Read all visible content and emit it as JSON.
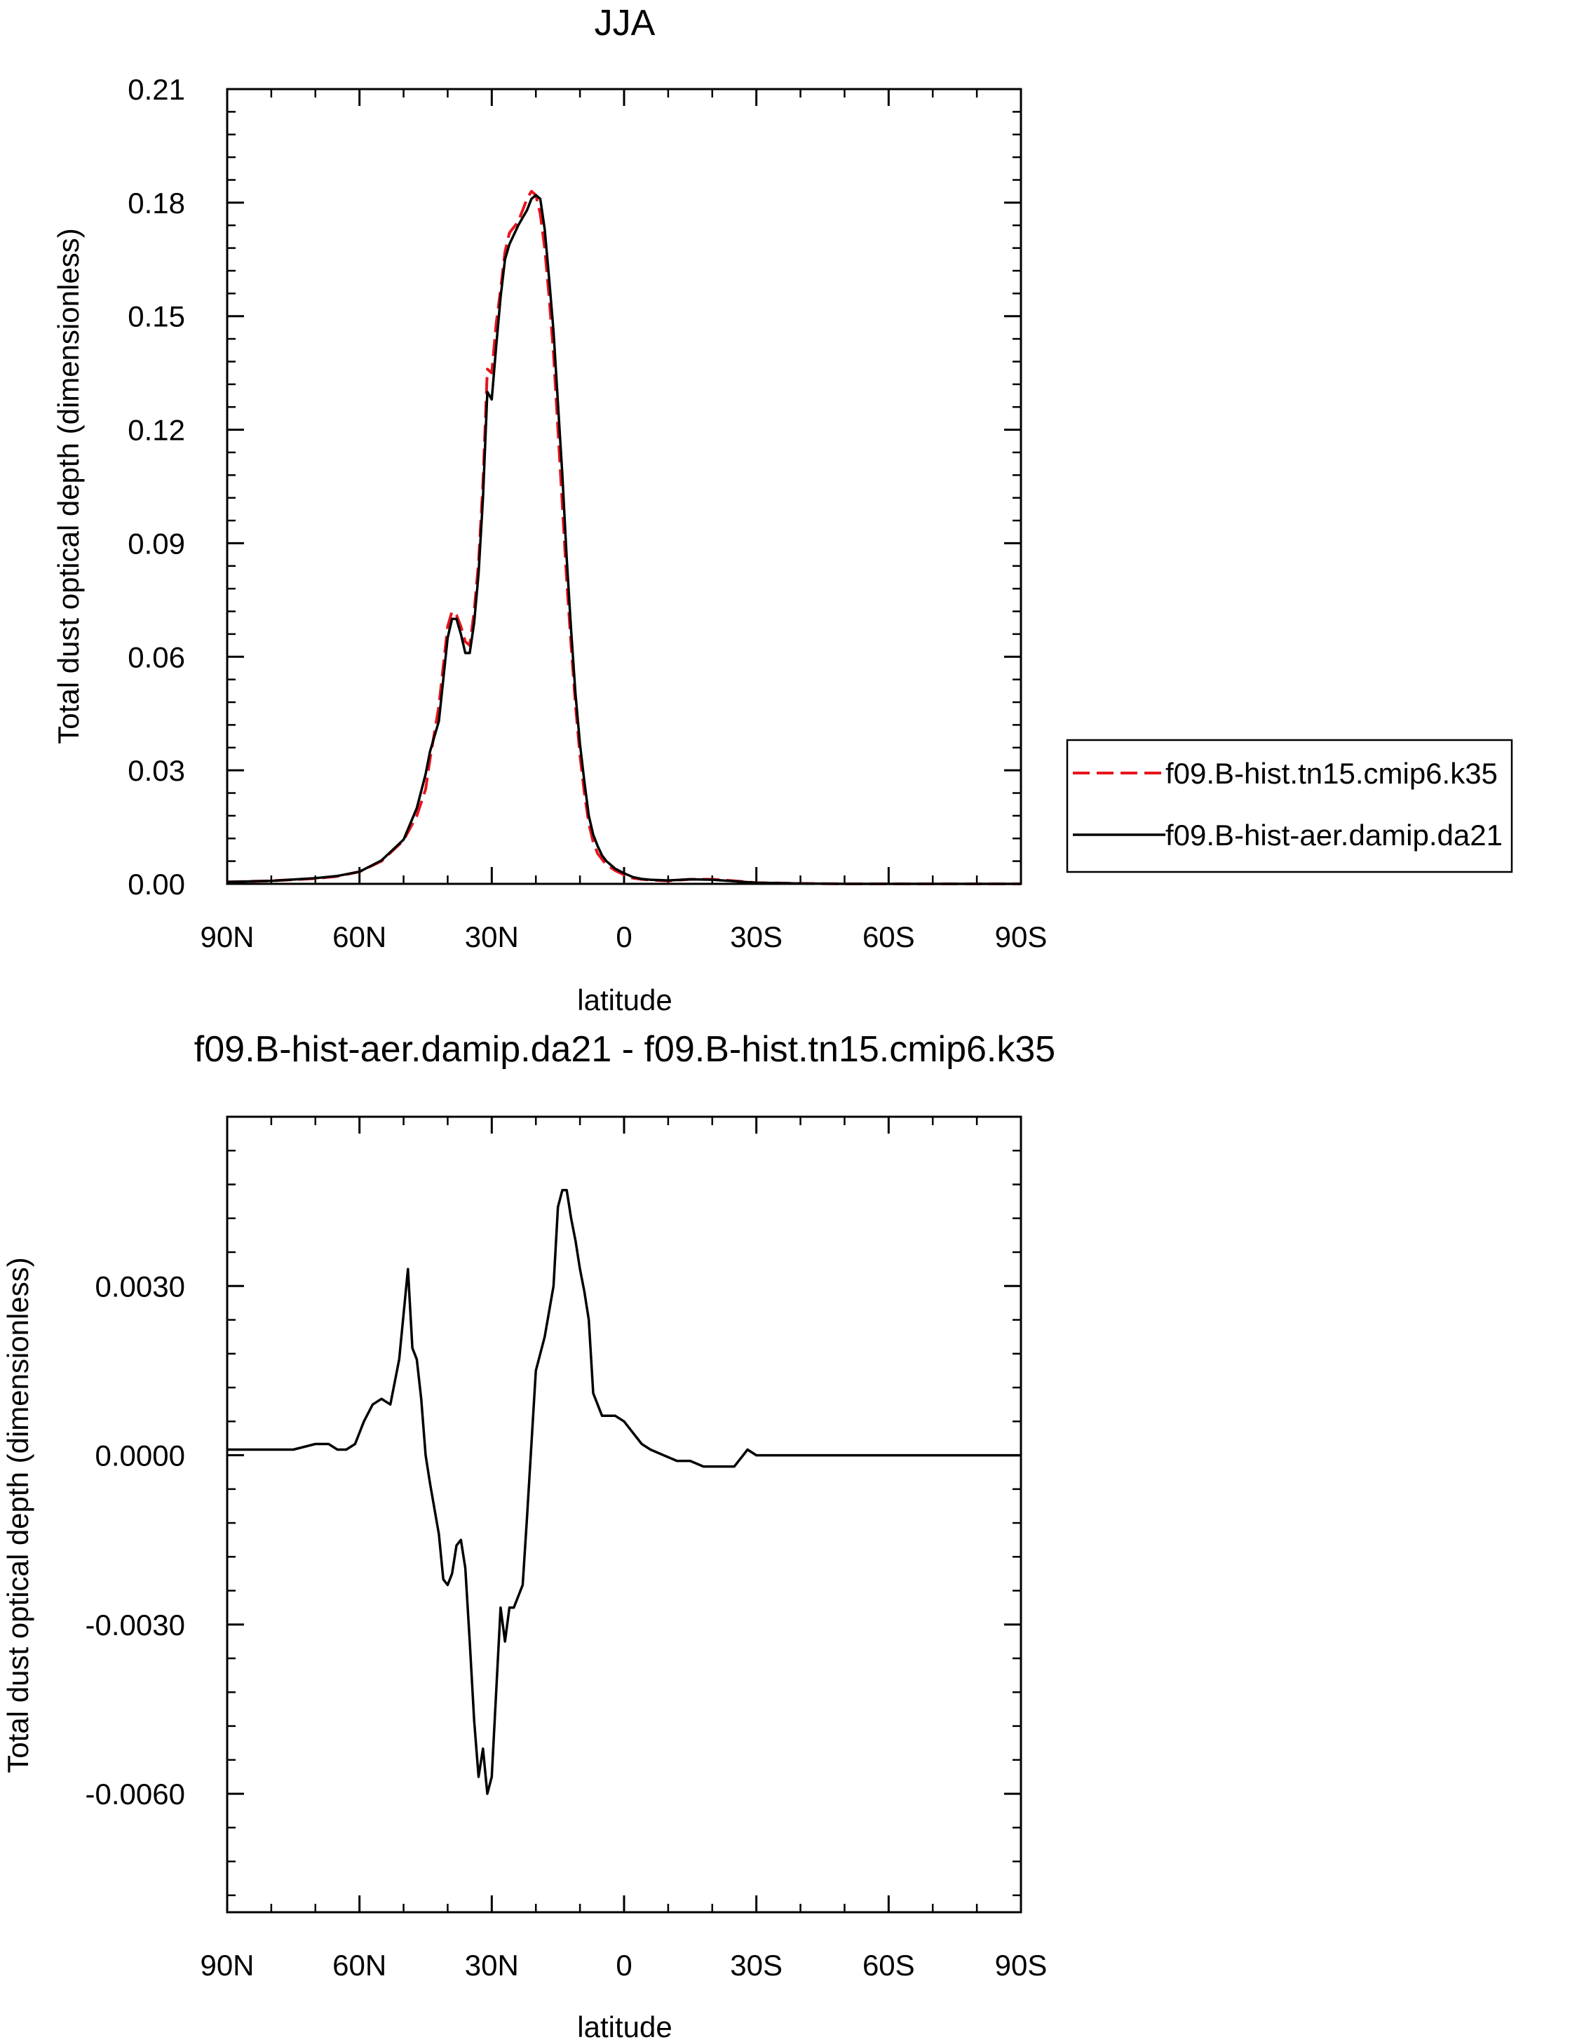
{
  "chart_data": [
    {
      "type": "line",
      "title": "JJA",
      "xlabel": "latitude",
      "ylabel": "Total dust optical depth (dimensionless)",
      "x_unit": "degrees latitude (positive = N, negative = S)",
      "xlim": [
        90,
        -90
      ],
      "ylim": [
        0.0,
        0.21
      ],
      "xticks": [
        90,
        60,
        30,
        0,
        -30,
        -60,
        -90
      ],
      "xtick_labels": [
        "90N",
        "60N",
        "30N",
        "0",
        "30S",
        "60S",
        "90S"
      ],
      "yticks": [
        0.0,
        0.03,
        0.06,
        0.09,
        0.12,
        0.15,
        0.18,
        0.21
      ],
      "ytick_labels": [
        "0.00",
        "0.03",
        "0.06",
        "0.09",
        "0.12",
        "0.15",
        "0.18",
        "0.21"
      ],
      "grid": false,
      "legend": "right",
      "series": [
        {
          "name": "f09.B-hist.tn15.cmip6.k35",
          "color": "#e8141c",
          "dash": "dashed",
          "x": [
            90,
            80,
            70,
            65,
            60,
            55,
            50,
            47,
            45,
            44,
            42,
            40,
            39,
            38,
            37,
            36,
            35,
            34,
            33,
            32,
            31,
            30,
            29,
            28,
            27,
            26,
            24,
            22,
            21,
            20,
            19,
            18,
            17,
            16,
            15,
            14,
            13,
            12,
            11,
            10,
            9,
            8,
            7,
            6,
            5,
            4,
            3,
            2,
            0,
            -2,
            -4,
            -6,
            -10,
            -15,
            -20,
            -25,
            -30,
            -35,
            -40,
            -50,
            -60,
            -70,
            -80,
            -90
          ],
          "y": [
            0.0005,
            0.0008,
            0.0014,
            0.002,
            0.0032,
            0.006,
            0.0115,
            0.018,
            0.025,
            0.033,
            0.047,
            0.068,
            0.072,
            0.071,
            0.068,
            0.064,
            0.063,
            0.072,
            0.085,
            0.106,
            0.136,
            0.135,
            0.148,
            0.157,
            0.167,
            0.172,
            0.175,
            0.181,
            0.183,
            0.182,
            0.177,
            0.168,
            0.155,
            0.14,
            0.12,
            0.1,
            0.08,
            0.063,
            0.047,
            0.034,
            0.024,
            0.016,
            0.011,
            0.008,
            0.0065,
            0.005,
            0.0043,
            0.0035,
            0.0024,
            0.0015,
            0.0012,
            0.001,
            0.0008,
            0.0012,
            0.0012,
            0.0008,
            0.0003,
            0.0002,
            0.0001,
            0.0,
            0.0,
            0.0,
            0.0,
            0.0
          ]
        },
        {
          "name": "f09.B-hist-aer.damip.da21",
          "color": "#000000",
          "dash": "solid",
          "x": [
            90,
            80,
            70,
            65,
            60,
            55,
            50,
            47,
            45,
            44,
            42,
            40,
            39,
            38,
            37,
            36,
            35,
            34,
            33,
            32,
            31,
            30,
            29,
            28,
            27,
            26,
            24,
            22,
            21,
            20,
            19,
            18,
            17,
            16,
            15,
            14,
            13,
            12,
            11,
            10,
            9,
            8,
            7,
            6,
            5,
            4,
            3,
            2,
            0,
            -2,
            -4,
            -6,
            -10,
            -15,
            -20,
            -25,
            -30,
            -35,
            -40,
            -50,
            -60,
            -70,
            -80,
            -90
          ],
          "y": [
            0.0005,
            0.0008,
            0.0015,
            0.0021,
            0.0032,
            0.0062,
            0.0117,
            0.02,
            0.029,
            0.035,
            0.043,
            0.065,
            0.07,
            0.07,
            0.066,
            0.061,
            0.061,
            0.069,
            0.082,
            0.102,
            0.13,
            0.128,
            0.142,
            0.155,
            0.165,
            0.169,
            0.174,
            0.178,
            0.181,
            0.182,
            0.181,
            0.173,
            0.16,
            0.146,
            0.127,
            0.108,
            0.086,
            0.067,
            0.05,
            0.037,
            0.027,
            0.018,
            0.013,
            0.01,
            0.0075,
            0.006,
            0.005,
            0.004,
            0.0028,
            0.0018,
            0.0013,
            0.0011,
            0.0009,
            0.0012,
            0.0011,
            0.0007,
            0.0003,
            0.0002,
            0.0001,
            0.0,
            0.0,
            0.0,
            0.0,
            0.0
          ]
        }
      ]
    },
    {
      "type": "line",
      "title": "f09.B-hist-aer.damip.da21 - f09.B-hist.tn15.cmip6.k35",
      "xlabel": "latitude",
      "ylabel": "Total dust optical depth (dimensionless)",
      "x_unit": "degrees latitude (positive = N, negative = S)",
      "xlim": [
        90,
        -90
      ],
      "ylim": [
        -0.0081,
        0.006
      ],
      "xticks": [
        90,
        60,
        30,
        0,
        -30,
        -60,
        -90
      ],
      "xtick_labels": [
        "90N",
        "60N",
        "30N",
        "0",
        "30S",
        "60S",
        "90S"
      ],
      "yticks": [
        -0.006,
        -0.003,
        0.0,
        0.003
      ],
      "ytick_labels": [
        "-0.0060",
        "-0.0030",
        "0.0000",
        "0.0030"
      ],
      "grid": false,
      "series": [
        {
          "color": "#000000",
          "dash": "solid",
          "x": [
            90,
            80,
            75,
            70,
            67,
            65,
            63,
            61,
            59,
            57,
            55,
            53,
            51,
            49,
            48,
            47,
            46,
            45,
            44,
            42,
            41,
            40,
            39,
            38,
            37,
            36,
            35,
            34,
            33,
            32,
            31,
            30,
            29,
            28,
            27,
            26,
            25,
            24,
            23,
            22,
            20,
            18,
            16,
            15,
            14,
            13,
            12,
            11,
            10,
            9,
            8,
            7,
            5,
            4,
            2,
            0,
            -2,
            -4,
            -6,
            -9,
            -12,
            -15,
            -18,
            -20,
            -22,
            -24,
            -25,
            -26,
            -27,
            -28,
            -30,
            -35,
            -40,
            -50,
            -60,
            -70,
            -80,
            -90
          ],
          "y": [
            0.0001,
            0.0001,
            0.0001,
            0.0002,
            0.0002,
            0.0001,
            0.0001,
            0.0002,
            0.0006,
            0.0009,
            0.001,
            0.0009,
            0.0017,
            0.0033,
            0.0019,
            0.0017,
            0.001,
            0.0,
            -0.0005,
            -0.0014,
            -0.0022,
            -0.0023,
            -0.0021,
            -0.0016,
            -0.0015,
            -0.002,
            -0.0033,
            -0.0047,
            -0.0057,
            -0.0052,
            -0.006,
            -0.0057,
            -0.0042,
            -0.0027,
            -0.0033,
            -0.0027,
            -0.0027,
            -0.0025,
            -0.0023,
            -0.0011,
            0.0015,
            0.0021,
            0.003,
            0.0044,
            0.0047,
            0.0047,
            0.0042,
            0.0038,
            0.0033,
            0.0029,
            0.0024,
            0.0011,
            0.0007,
            0.0007,
            0.0007,
            0.0006,
            0.0004,
            0.0002,
            0.0001,
            0.0,
            -0.0001,
            -0.0001,
            -0.0002,
            -0.0002,
            -0.0002,
            -0.0002,
            -0.0002,
            -0.0001,
            0.0,
            0.0001,
            0.0,
            0.0,
            0.0,
            0.0,
            0.0,
            0.0,
            0.0,
            0.0
          ]
        }
      ]
    }
  ]
}
